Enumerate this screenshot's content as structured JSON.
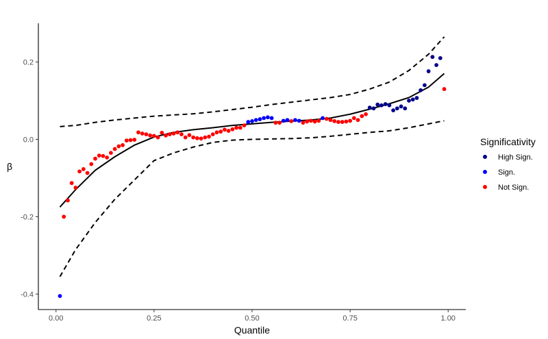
{
  "chart_data": {
    "type": "scatter",
    "xlabel": "Quantile",
    "ylabel": "β",
    "xlim": [
      -0.045,
      1.045
    ],
    "ylim": [
      -0.44,
      0.3
    ],
    "x_ticks": [
      0.0,
      0.25,
      0.5,
      0.75,
      1.0
    ],
    "x_tick_labels": [
      "0.00",
      "0.25",
      "0.50",
      "0.75",
      "1.00"
    ],
    "y_ticks": [
      -0.4,
      -0.2,
      0.0,
      0.2
    ],
    "y_tick_labels": [
      "-0.4",
      "-0.2",
      "0.0",
      "0.2"
    ],
    "grid": false,
    "legend": {
      "title": "Significativity",
      "position": "right",
      "entries": [
        {
          "label": "High Sign.",
          "color": "#00008B"
        },
        {
          "label": "Sign.",
          "color": "#0000FF"
        },
        {
          "label": "Not Sign.",
          "color": "#FF0000"
        }
      ]
    },
    "series": [
      {
        "name": "High Sign.",
        "color": "#00008B",
        "points": [
          [
            0.8,
            0.082
          ],
          [
            0.81,
            0.08
          ],
          [
            0.82,
            0.09
          ],
          [
            0.83,
            0.088
          ],
          [
            0.84,
            0.091
          ],
          [
            0.85,
            0.088
          ],
          [
            0.86,
            0.075
          ],
          [
            0.87,
            0.08
          ],
          [
            0.88,
            0.085
          ],
          [
            0.89,
            0.08
          ],
          [
            0.9,
            0.1
          ],
          [
            0.91,
            0.103
          ],
          [
            0.92,
            0.107
          ],
          [
            0.93,
            0.127
          ],
          [
            0.94,
            0.14
          ],
          [
            0.95,
            0.176
          ],
          [
            0.96,
            0.213
          ],
          [
            0.97,
            0.192
          ],
          [
            0.98,
            0.21
          ]
        ]
      },
      {
        "name": "Sign.",
        "color": "#0000FF",
        "points": [
          [
            0.01,
            -0.405
          ],
          [
            0.49,
            0.045
          ],
          [
            0.5,
            0.047
          ],
          [
            0.51,
            0.05
          ],
          [
            0.52,
            0.052
          ],
          [
            0.53,
            0.055
          ],
          [
            0.54,
            0.057
          ],
          [
            0.55,
            0.055
          ],
          [
            0.58,
            0.048
          ],
          [
            0.59,
            0.05
          ],
          [
            0.61,
            0.05
          ],
          [
            0.62,
            0.048
          ],
          [
            0.68,
            0.055
          ]
        ]
      },
      {
        "name": "Not Sign.",
        "color": "#FF0000",
        "points": [
          [
            0.02,
            -0.2
          ],
          [
            0.03,
            -0.158
          ],
          [
            0.04,
            -0.113
          ],
          [
            0.05,
            -0.125
          ],
          [
            0.06,
            -0.083
          ],
          [
            0.07,
            -0.077
          ],
          [
            0.08,
            -0.087
          ],
          [
            0.09,
            -0.064
          ],
          [
            0.1,
            -0.05
          ],
          [
            0.11,
            -0.042
          ],
          [
            0.12,
            -0.043
          ],
          [
            0.13,
            -0.047
          ],
          [
            0.14,
            -0.035
          ],
          [
            0.15,
            -0.025
          ],
          [
            0.16,
            -0.018
          ],
          [
            0.17,
            -0.015
          ],
          [
            0.18,
            -0.003
          ],
          [
            0.19,
            -0.002
          ],
          [
            0.2,
            -0.001
          ],
          [
            0.21,
            0.018
          ],
          [
            0.22,
            0.015
          ],
          [
            0.23,
            0.013
          ],
          [
            0.24,
            0.01
          ],
          [
            0.25,
            0.009
          ],
          [
            0.26,
            0.005
          ],
          [
            0.27,
            0.017
          ],
          [
            0.28,
            0.01
          ],
          [
            0.29,
            0.013
          ],
          [
            0.3,
            0.015
          ],
          [
            0.31,
            0.018
          ],
          [
            0.32,
            0.013
          ],
          [
            0.33,
            0.005
          ],
          [
            0.34,
            0.011
          ],
          [
            0.35,
            0.005
          ],
          [
            0.36,
            0.003
          ],
          [
            0.37,
            0.002
          ],
          [
            0.38,
            0.005
          ],
          [
            0.39,
            0.007
          ],
          [
            0.4,
            0.013
          ],
          [
            0.41,
            0.018
          ],
          [
            0.42,
            0.02
          ],
          [
            0.43,
            0.025
          ],
          [
            0.44,
            0.022
          ],
          [
            0.45,
            0.026
          ],
          [
            0.46,
            0.03
          ],
          [
            0.47,
            0.03
          ],
          [
            0.48,
            0.036
          ],
          [
            0.56,
            0.043
          ],
          [
            0.57,
            0.043
          ],
          [
            0.6,
            0.047
          ],
          [
            0.63,
            0.043
          ],
          [
            0.64,
            0.046
          ],
          [
            0.65,
            0.048
          ],
          [
            0.66,
            0.046
          ],
          [
            0.67,
            0.048
          ],
          [
            0.69,
            0.053
          ],
          [
            0.7,
            0.05
          ],
          [
            0.71,
            0.047
          ],
          [
            0.72,
            0.045
          ],
          [
            0.73,
            0.045
          ],
          [
            0.74,
            0.046
          ],
          [
            0.75,
            0.048
          ],
          [
            0.76,
            0.055
          ],
          [
            0.77,
            0.05
          ],
          [
            0.78,
            0.06
          ],
          [
            0.79,
            0.065
          ],
          [
            0.99,
            0.13
          ]
        ]
      }
    ],
    "lines": [
      {
        "role": "estimate",
        "style": "solid",
        "color": "#000000",
        "points": [
          [
            0.01,
            -0.175
          ],
          [
            0.05,
            -0.13
          ],
          [
            0.1,
            -0.08
          ],
          [
            0.15,
            -0.045
          ],
          [
            0.2,
            -0.015
          ],
          [
            0.25,
            0.006
          ],
          [
            0.3,
            0.018
          ],
          [
            0.35,
            0.025
          ],
          [
            0.4,
            0.03
          ],
          [
            0.45,
            0.036
          ],
          [
            0.5,
            0.04
          ],
          [
            0.55,
            0.044
          ],
          [
            0.6,
            0.047
          ],
          [
            0.65,
            0.05
          ],
          [
            0.7,
            0.055
          ],
          [
            0.75,
            0.065
          ],
          [
            0.8,
            0.078
          ],
          [
            0.85,
            0.092
          ],
          [
            0.9,
            0.108
          ],
          [
            0.95,
            0.135
          ],
          [
            0.99,
            0.17
          ]
        ]
      },
      {
        "role": "upper band",
        "style": "dashed",
        "color": "#000000",
        "points": [
          [
            0.01,
            0.033
          ],
          [
            0.05,
            0.036
          ],
          [
            0.1,
            0.044
          ],
          [
            0.15,
            0.05
          ],
          [
            0.2,
            0.055
          ],
          [
            0.25,
            0.06
          ],
          [
            0.3,
            0.063
          ],
          [
            0.35,
            0.066
          ],
          [
            0.4,
            0.071
          ],
          [
            0.45,
            0.077
          ],
          [
            0.5,
            0.083
          ],
          [
            0.55,
            0.09
          ],
          [
            0.6,
            0.096
          ],
          [
            0.65,
            0.102
          ],
          [
            0.7,
            0.108
          ],
          [
            0.75,
            0.116
          ],
          [
            0.8,
            0.13
          ],
          [
            0.85,
            0.148
          ],
          [
            0.9,
            0.178
          ],
          [
            0.95,
            0.22
          ],
          [
            0.99,
            0.265
          ]
        ]
      },
      {
        "role": "lower band",
        "style": "dashed",
        "color": "#000000",
        "points": [
          [
            0.01,
            -0.355
          ],
          [
            0.05,
            -0.285
          ],
          [
            0.1,
            -0.215
          ],
          [
            0.15,
            -0.155
          ],
          [
            0.2,
            -0.105
          ],
          [
            0.25,
            -0.055
          ],
          [
            0.3,
            -0.035
          ],
          [
            0.35,
            -0.02
          ],
          [
            0.4,
            -0.008
          ],
          [
            0.45,
            -0.002
          ],
          [
            0.5,
            0.0
          ],
          [
            0.55,
            0.001
          ],
          [
            0.6,
            0.002
          ],
          [
            0.65,
            0.004
          ],
          [
            0.7,
            0.008
          ],
          [
            0.75,
            0.013
          ],
          [
            0.8,
            0.018
          ],
          [
            0.85,
            0.022
          ],
          [
            0.9,
            0.03
          ],
          [
            0.95,
            0.04
          ],
          [
            0.99,
            0.048
          ]
        ]
      }
    ]
  }
}
